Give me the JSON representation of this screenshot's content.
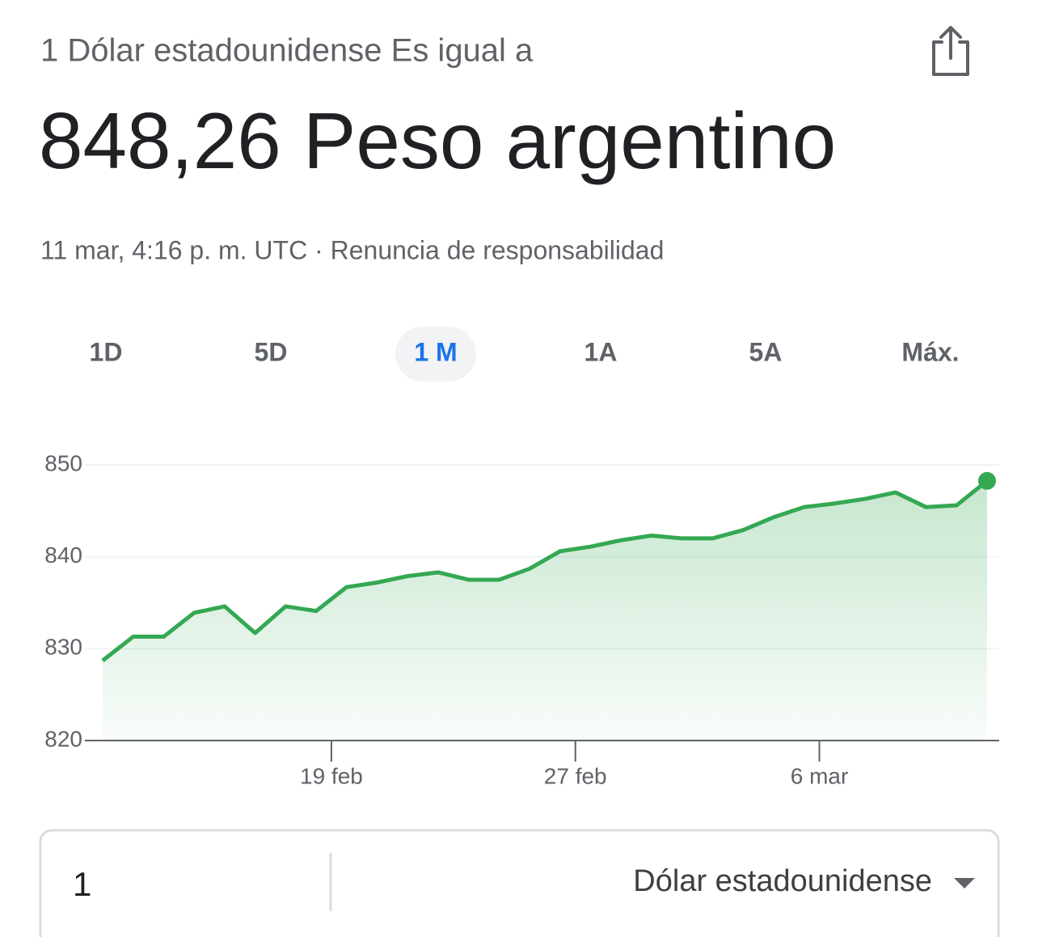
{
  "header": {
    "subtitle": "1 Dólar estadounidense Es igual a",
    "result": "848,26 Peso argentino",
    "timestamp": "11 mar, 4:16 p. m. UTC · Renuncia de responsabilidad"
  },
  "tabs": [
    "1D",
    "5D",
    "1 M",
    "1A",
    "5A",
    "Máx."
  ],
  "selected_tab": 2,
  "chart_data": {
    "type": "area-line",
    "color": "#34a853",
    "categories": [
      null,
      null,
      null,
      null,
      null,
      null,
      null,
      null,
      null,
      null,
      null,
      null,
      null,
      null,
      null,
      null,
      null,
      null,
      null,
      null,
      null,
      null,
      null,
      null,
      null,
      null,
      null,
      null,
      null,
      null
    ],
    "values": [
      828.7,
      831.3,
      831.3,
      833.9,
      834.6,
      831.7,
      834.6,
      834.1,
      836.7,
      837.2,
      837.9,
      838.3,
      837.5,
      837.5,
      838.7,
      840.6,
      841.1,
      841.8,
      842.3,
      842.0,
      842.0,
      842.9,
      844.3,
      845.4,
      845.8,
      846.3,
      847.0,
      845.4,
      845.6,
      848.26
    ],
    "ylim": [
      820,
      850
    ],
    "yticks": [
      820,
      830,
      840,
      850
    ],
    "grid": true,
    "xlim": [
      0,
      29
    ],
    "xticks": [
      {
        "value": 7.5,
        "label": "19 feb"
      },
      {
        "value": 15.5,
        "label": "27 feb"
      },
      {
        "value": 23.5,
        "label": "6 mar"
      }
    ]
  },
  "converter": {
    "amount": "1",
    "currency": "Dólar estadounidense"
  }
}
